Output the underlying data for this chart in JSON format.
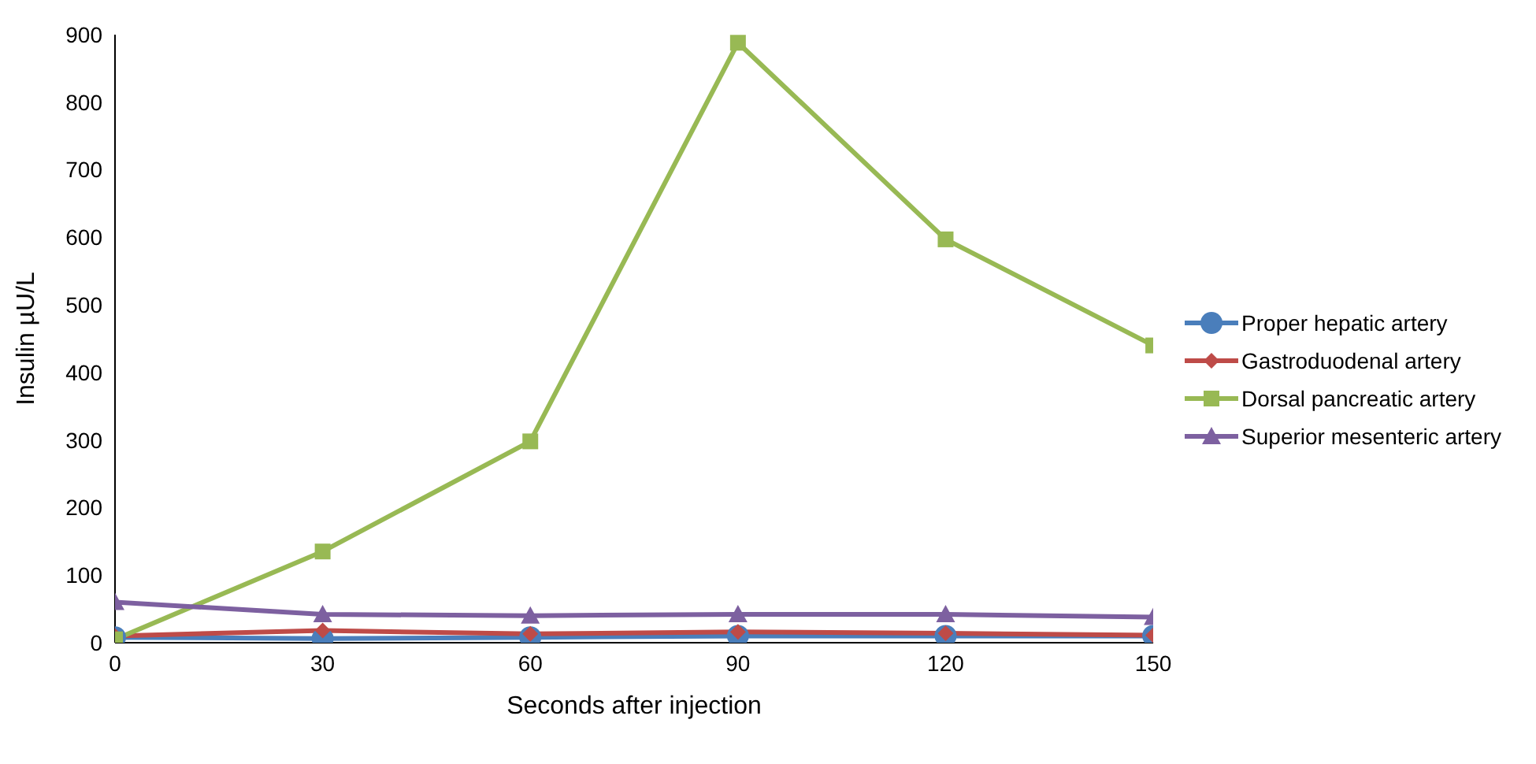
{
  "chart_data": {
    "type": "line",
    "xlabel": "Seconds after injection",
    "ylabel": "Insulin µU/L",
    "x": [
      0,
      30,
      60,
      90,
      120,
      150
    ],
    "xlim": [
      0,
      150
    ],
    "xticks": [
      0,
      30,
      60,
      90,
      120,
      150
    ],
    "ylim": [
      0,
      900
    ],
    "yticks": [
      0,
      100,
      200,
      300,
      400,
      500,
      600,
      700,
      800,
      900
    ],
    "grid": false,
    "legend": "right",
    "line_style": "solid",
    "series": [
      {
        "name": "Proper hepatic artery",
        "color": "#4a7ebb",
        "marker": "circle",
        "values": [
          8,
          6,
          8,
          10,
          10,
          10
        ]
      },
      {
        "name": "Gastroduodenal artery",
        "color": "#be4b48",
        "marker": "diamond",
        "values": [
          10,
          18,
          13,
          16,
          14,
          11
        ]
      },
      {
        "name": "Dorsal pancreatic artery",
        "color": "#98b954",
        "marker": "square",
        "values": [
          5,
          135,
          298,
          888,
          597,
          440
        ]
      },
      {
        "name": "Superior mesenteric artery",
        "color": "#7d60a0",
        "marker": "triangle",
        "values": [
          60,
          42,
          40,
          42,
          42,
          38
        ]
      }
    ]
  }
}
